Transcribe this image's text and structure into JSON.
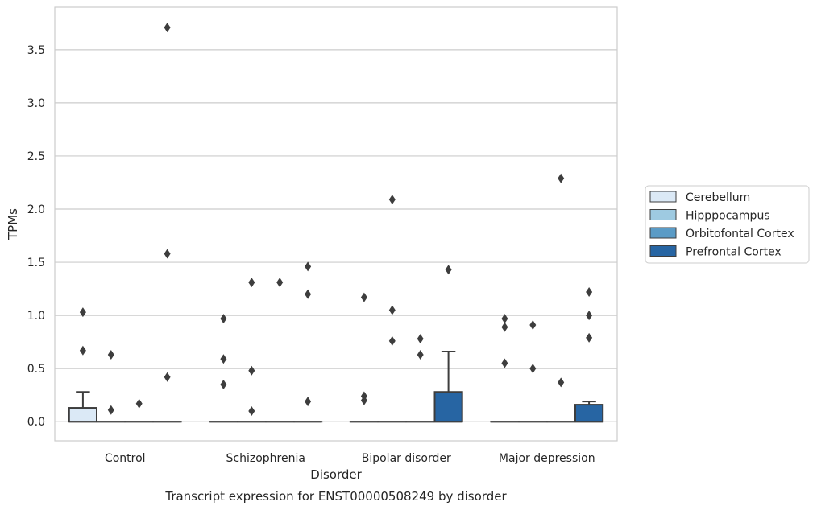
{
  "chart_data": {
    "type": "box",
    "title": "",
    "caption": "Transcript expression for ENST00000508249 by disorder",
    "xlabel": "Disorder",
    "ylabel": "TPMs",
    "ylim": [
      -0.18,
      3.9
    ],
    "yticks": [
      "0.0",
      "0.5",
      "1.0",
      "1.5",
      "2.0",
      "2.5",
      "3.0",
      "3.5"
    ],
    "ytick_values": [
      0.0,
      0.5,
      1.0,
      1.5,
      2.0,
      2.5,
      3.0,
      3.5
    ],
    "grid": "horizontal",
    "legend_position": "right",
    "categories": [
      "Control",
      "Schizophrenia",
      "Bipolar disorder",
      "Major depression"
    ],
    "series": [
      {
        "name": "Cerebellum",
        "color": "#dbe9f6",
        "boxes": [
          {
            "q1": 0.0,
            "median": 0.0,
            "q3": 0.13,
            "whisker_low": 0.0,
            "whisker_high": 0.28,
            "outliers": [
              1.03,
              0.67
            ]
          },
          {
            "q1": 0.0,
            "median": 0.0,
            "q3": 0.0,
            "whisker_low": 0.0,
            "whisker_high": 0.0,
            "outliers": [
              0.97,
              0.59,
              0.35
            ]
          },
          {
            "q1": 0.0,
            "median": 0.0,
            "q3": 0.0,
            "whisker_low": 0.0,
            "whisker_high": 0.0,
            "outliers": [
              1.17,
              0.24,
              0.2
            ]
          },
          {
            "q1": 0.0,
            "median": 0.0,
            "q3": 0.0,
            "whisker_low": 0.0,
            "whisker_high": 0.0,
            "outliers": [
              0.97,
              0.89,
              0.55
            ]
          }
        ]
      },
      {
        "name": "Hipppocampus",
        "color": "#9ecae1",
        "boxes": [
          {
            "q1": 0.0,
            "median": 0.0,
            "q3": 0.0,
            "whisker_low": 0.0,
            "whisker_high": 0.0,
            "outliers": [
              0.63,
              0.11
            ]
          },
          {
            "q1": 0.0,
            "median": 0.0,
            "q3": 0.0,
            "whisker_low": 0.0,
            "whisker_high": 0.0,
            "outliers": [
              1.31,
              0.48,
              0.1
            ]
          },
          {
            "q1": 0.0,
            "median": 0.0,
            "q3": 0.0,
            "whisker_low": 0.0,
            "whisker_high": 0.0,
            "outliers": [
              2.09,
              1.05,
              0.76
            ]
          },
          {
            "q1": 0.0,
            "median": 0.0,
            "q3": 0.0,
            "whisker_low": 0.0,
            "whisker_high": 0.0,
            "outliers": [
              0.91,
              0.5
            ]
          }
        ]
      },
      {
        "name": "Orbitofontal Cortex",
        "color": "#5a9bc6",
        "boxes": [
          {
            "q1": 0.0,
            "median": 0.0,
            "q3": 0.0,
            "whisker_low": 0.0,
            "whisker_high": 0.0,
            "outliers": [
              0.17
            ]
          },
          {
            "q1": 0.0,
            "median": 0.0,
            "q3": 0.0,
            "whisker_low": 0.0,
            "whisker_high": 0.0,
            "outliers": [
              1.31
            ]
          },
          {
            "q1": 0.0,
            "median": 0.0,
            "q3": 0.0,
            "whisker_low": 0.0,
            "whisker_high": 0.0,
            "outliers": [
              0.78,
              0.63
            ]
          },
          {
            "q1": 0.0,
            "median": 0.0,
            "q3": 0.0,
            "whisker_low": 0.0,
            "whisker_high": 0.0,
            "outliers": [
              2.29,
              0.37
            ]
          }
        ]
      },
      {
        "name": "Prefrontal Cortex",
        "color": "#2765a3",
        "boxes": [
          {
            "q1": 0.0,
            "median": 0.0,
            "q3": 0.0,
            "whisker_low": 0.0,
            "whisker_high": 0.0,
            "outliers": [
              3.71,
              1.58,
              0.42
            ]
          },
          {
            "q1": 0.0,
            "median": 0.0,
            "q3": 0.0,
            "whisker_low": 0.0,
            "whisker_high": 0.0,
            "outliers": [
              1.46,
              1.2,
              0.19
            ]
          },
          {
            "q1": 0.0,
            "median": 0.0,
            "q3": 0.28,
            "whisker_low": 0.0,
            "whisker_high": 0.66,
            "outliers": [
              1.43
            ]
          },
          {
            "q1": 0.0,
            "median": 0.0,
            "q3": 0.16,
            "whisker_low": 0.0,
            "whisker_high": 0.19,
            "outliers": [
              1.22,
              1.0,
              0.79
            ]
          }
        ]
      }
    ]
  }
}
